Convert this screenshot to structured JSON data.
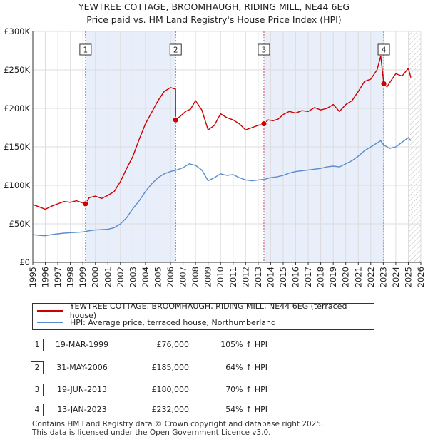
{
  "title_line1": "YEWTREE COTTAGE, BROOMHAUGH, RIDING MILL, NE44 6EG",
  "title_line2": "Price paid vs. HM Land Registry's House Price Index (HPI)",
  "legend": {
    "property": "YEWTREE COTTAGE, BROOMHAUGH, RIDING MILL, NE44 6EG (terraced house)",
    "hpi": "HPI: Average price, terraced house, Northumberland"
  },
  "colors": {
    "property": "#cc0000",
    "hpi": "#5b8ccc",
    "shade": "#e8eefa",
    "grid": "#dddddd",
    "vline": "#cc0000",
    "hatch": "#bbbbbb"
  },
  "transactions": [
    {
      "num": "1",
      "date": "19-MAR-1999",
      "price": "£76,000",
      "hpi": "105% ↑ HPI"
    },
    {
      "num": "2",
      "date": "31-MAY-2006",
      "price": "£185,000",
      "hpi": "64% ↑ HPI"
    },
    {
      "num": "3",
      "date": "19-JUN-2013",
      "price": "£180,000",
      "hpi": "70% ↑ HPI"
    },
    {
      "num": "4",
      "date": "13-JAN-2023",
      "price": "£232,000",
      "hpi": "54% ↑ HPI"
    }
  ],
  "footer": {
    "line1": "Contains HM Land Registry data © Crown copyright and database right 2025.",
    "line2": "This data is licensed under the Open Government Licence v3.0."
  },
  "chart_data": {
    "type": "line",
    "title": "YEWTREE COTTAGE, BROOMHAUGH, RIDING MILL, NE44 6EG",
    "subtitle": "Price paid vs. HM Land Registry's House Price Index (HPI)",
    "xlim": [
      1995,
      2026
    ],
    "ylim": [
      0,
      300000
    ],
    "xticks": [
      "1995",
      "1996",
      "1997",
      "1998",
      "1999",
      "2000",
      "2001",
      "2002",
      "2003",
      "2004",
      "2005",
      "2006",
      "2007",
      "2008",
      "2009",
      "2010",
      "2011",
      "2012",
      "2013",
      "2014",
      "2015",
      "2016",
      "2017",
      "2018",
      "2019",
      "2020",
      "2021",
      "2022",
      "2023",
      "2024",
      "2025",
      "2026"
    ],
    "yticks": [
      {
        "value": 0,
        "label": "£0"
      },
      {
        "value": 50000,
        "label": "£50K"
      },
      {
        "value": 100000,
        "label": "£100K"
      },
      {
        "value": 150000,
        "label": "£150K"
      },
      {
        "value": 200000,
        "label": "£200K"
      },
      {
        "value": 250000,
        "label": "£250K"
      },
      {
        "value": 300000,
        "label": "£300K"
      }
    ],
    "shaded_ranges": [
      [
        1999.21,
        2006.41
      ],
      [
        2013.46,
        2023.04
      ]
    ],
    "hatch_from": 2025.0,
    "sales": [
      {
        "label": "1",
        "x": 1999.21,
        "y": 76000
      },
      {
        "label": "2",
        "x": 2006.41,
        "y": 185000
      },
      {
        "label": "3",
        "x": 2013.46,
        "y": 180000
      },
      {
        "label": "4",
        "x": 2023.04,
        "y": 232000
      }
    ],
    "series": [
      {
        "name": "YEWTREE COTTAGE, BROOMHAUGH, RIDING MILL, NE44 6EG (terraced house)",
        "color": "#cc0000",
        "x": [
          1995.0,
          1995.5,
          1996.0,
          1996.5,
          1997.0,
          1997.5,
          1998.0,
          1998.5,
          1999.0,
          1999.21,
          1999.5,
          2000.0,
          2000.5,
          2001.0,
          2001.5,
          2002.0,
          2002.5,
          2003.0,
          2003.5,
          2004.0,
          2004.5,
          2005.0,
          2005.5,
          2006.0,
          2006.4,
          2006.41,
          2006.8,
          2007.2,
          2007.6,
          2008.0,
          2008.5,
          2009.0,
          2009.5,
          2010.0,
          2010.5,
          2011.0,
          2011.5,
          2012.0,
          2012.5,
          2013.0,
          2013.46,
          2013.8,
          2014.2,
          2014.6,
          2015.0,
          2015.5,
          2016.0,
          2016.5,
          2017.0,
          2017.5,
          2018.0,
          2018.5,
          2019.0,
          2019.5,
          2020.0,
          2020.5,
          2021.0,
          2021.5,
          2022.0,
          2022.5,
          2022.8,
          2023.04,
          2023.3,
          2023.7,
          2024.0,
          2024.5,
          2025.0,
          2025.2
        ],
        "y": [
          75000,
          72000,
          69000,
          73000,
          76000,
          79000,
          78000,
          80000,
          77000,
          76000,
          84000,
          86000,
          83000,
          87000,
          92000,
          105000,
          122000,
          138000,
          160000,
          180000,
          195000,
          210000,
          222000,
          227000,
          225000,
          185000,
          190000,
          196000,
          199000,
          210000,
          198000,
          172000,
          178000,
          193000,
          188000,
          185000,
          180000,
          172000,
          175000,
          178000,
          180000,
          185000,
          184000,
          186000,
          192000,
          196000,
          194000,
          197000,
          196000,
          201000,
          198000,
          200000,
          205000,
          196000,
          205000,
          210000,
          222000,
          235000,
          238000,
          250000,
          268000,
          232000,
          228000,
          238000,
          245000,
          242000,
          252000,
          240000
        ]
      },
      {
        "name": "HPI: Average price, terraced house, Northumberland",
        "color": "#5b8ccc",
        "x": [
          1995.0,
          1995.5,
          1996.0,
          1996.5,
          1997.0,
          1997.5,
          1998.0,
          1998.5,
          1999.0,
          1999.5,
          2000.0,
          2000.5,
          2001.0,
          2001.5,
          2002.0,
          2002.5,
          2003.0,
          2003.5,
          2004.0,
          2004.5,
          2005.0,
          2005.5,
          2006.0,
          2006.5,
          2007.0,
          2007.5,
          2008.0,
          2008.5,
          2009.0,
          2009.5,
          2010.0,
          2010.5,
          2011.0,
          2011.5,
          2012.0,
          2012.5,
          2013.0,
          2013.5,
          2014.0,
          2014.5,
          2015.0,
          2015.5,
          2016.0,
          2016.5,
          2017.0,
          2017.5,
          2018.0,
          2018.5,
          2019.0,
          2019.5,
          2020.0,
          2020.5,
          2021.0,
          2021.5,
          2022.0,
          2022.5,
          2022.8,
          2023.0,
          2023.5,
          2024.0,
          2024.5,
          2025.0,
          2025.2
        ],
        "y": [
          36000,
          35000,
          34500,
          36000,
          37000,
          38000,
          38500,
          39000,
          39500,
          41000,
          42000,
          42500,
          43000,
          45000,
          50000,
          58000,
          70000,
          80000,
          92000,
          102000,
          110000,
          115000,
          118000,
          120000,
          123000,
          128000,
          126000,
          120000,
          106000,
          110000,
          115000,
          113000,
          114000,
          110000,
          107000,
          106000,
          107000,
          108000,
          110000,
          111000,
          113000,
          116000,
          118000,
          119000,
          120000,
          121000,
          122000,
          124000,
          125000,
          124000,
          128000,
          132000,
          138000,
          145000,
          150000,
          155000,
          158000,
          153000,
          148000,
          150000,
          156000,
          162000,
          158000
        ]
      }
    ]
  }
}
